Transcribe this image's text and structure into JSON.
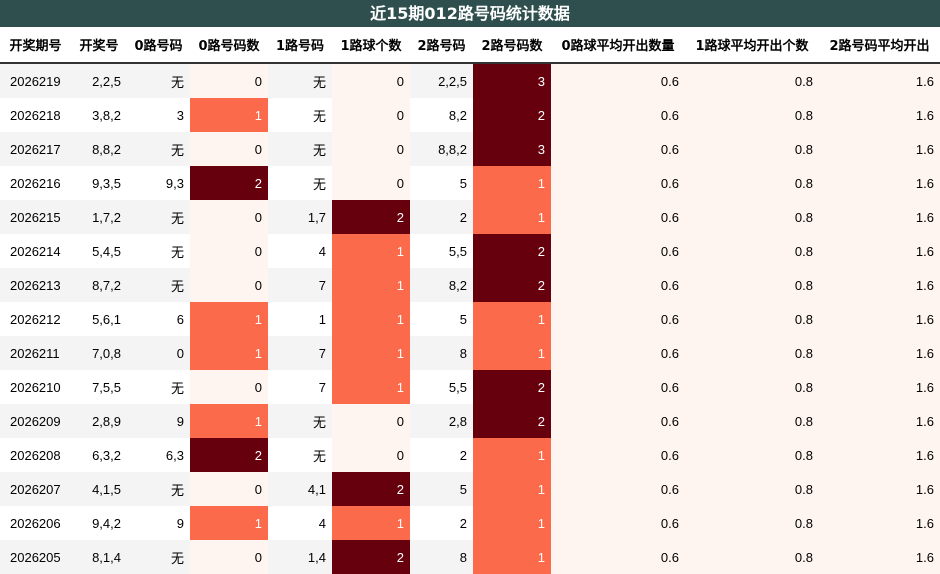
{
  "title": "近15期012路号码统计数据",
  "headers": [
    "开奖期号",
    "开奖号",
    "0路号码",
    "0路号码数",
    "1路号码",
    "1路球个数",
    "2路号码",
    "2路号码数",
    "0路球平均开出数量",
    "1路球平均开出个数",
    "2路号码平均开出"
  ],
  "rows": [
    {
      "period": "2026219",
      "draw": "2,2,5",
      "r0": "无",
      "c0": "0",
      "r1": "无",
      "c1": "0",
      "r2": "2,2,5",
      "c2": "3",
      "a0": "0.6",
      "a1": "0.8",
      "a2": "1.6"
    },
    {
      "period": "2026218",
      "draw": "3,8,2",
      "r0": "3",
      "c0": "1",
      "r1": "无",
      "c1": "0",
      "r2": "8,2",
      "c2": "2",
      "a0": "0.6",
      "a1": "0.8",
      "a2": "1.6"
    },
    {
      "period": "2026217",
      "draw": "8,8,2",
      "r0": "无",
      "c0": "0",
      "r1": "无",
      "c1": "0",
      "r2": "8,8,2",
      "c2": "3",
      "a0": "0.6",
      "a1": "0.8",
      "a2": "1.6"
    },
    {
      "period": "2026216",
      "draw": "9,3,5",
      "r0": "9,3",
      "c0": "2",
      "r1": "无",
      "c1": "0",
      "r2": "5",
      "c2": "1",
      "a0": "0.6",
      "a1": "0.8",
      "a2": "1.6"
    },
    {
      "period": "2026215",
      "draw": "1,7,2",
      "r0": "无",
      "c0": "0",
      "r1": "1,7",
      "c1": "2",
      "r2": "2",
      "c2": "1",
      "a0": "0.6",
      "a1": "0.8",
      "a2": "1.6"
    },
    {
      "period": "2026214",
      "draw": "5,4,5",
      "r0": "无",
      "c0": "0",
      "r1": "4",
      "c1": "1",
      "r2": "5,5",
      "c2": "2",
      "a0": "0.6",
      "a1": "0.8",
      "a2": "1.6"
    },
    {
      "period": "2026213",
      "draw": "8,7,2",
      "r0": "无",
      "c0": "0",
      "r1": "7",
      "c1": "1",
      "r2": "8,2",
      "c2": "2",
      "a0": "0.6",
      "a1": "0.8",
      "a2": "1.6"
    },
    {
      "period": "2026212",
      "draw": "5,6,1",
      "r0": "6",
      "c0": "1",
      "r1": "1",
      "c1": "1",
      "r2": "5",
      "c2": "1",
      "a0": "0.6",
      "a1": "0.8",
      "a2": "1.6"
    },
    {
      "period": "2026211",
      "draw": "7,0,8",
      "r0": "0",
      "c0": "1",
      "r1": "7",
      "c1": "1",
      "r2": "8",
      "c2": "1",
      "a0": "0.6",
      "a1": "0.8",
      "a2": "1.6"
    },
    {
      "period": "2026210",
      "draw": "7,5,5",
      "r0": "无",
      "c0": "0",
      "r1": "7",
      "c1": "1",
      "r2": "5,5",
      "c2": "2",
      "a0": "0.6",
      "a1": "0.8",
      "a2": "1.6"
    },
    {
      "period": "2026209",
      "draw": "2,8,9",
      "r0": "9",
      "c0": "1",
      "r1": "无",
      "c1": "0",
      "r2": "2,8",
      "c2": "2",
      "a0": "0.6",
      "a1": "0.8",
      "a2": "1.6"
    },
    {
      "period": "2026208",
      "draw": "6,3,2",
      "r0": "6,3",
      "c0": "2",
      "r1": "无",
      "c1": "0",
      "r2": "2",
      "c2": "1",
      "a0": "0.6",
      "a1": "0.8",
      "a2": "1.6"
    },
    {
      "period": "2026207",
      "draw": "4,1,5",
      "r0": "无",
      "c0": "0",
      "r1": "4,1",
      "c1": "2",
      "r2": "5",
      "c2": "1",
      "a0": "0.6",
      "a1": "0.8",
      "a2": "1.6"
    },
    {
      "period": "2026206",
      "draw": "9,4,2",
      "r0": "9",
      "c0": "1",
      "r1": "4",
      "c1": "1",
      "r2": "2",
      "c2": "1",
      "a0": "0.6",
      "a1": "0.8",
      "a2": "1.6"
    },
    {
      "period": "2026205",
      "draw": "8,1,4",
      "r0": "无",
      "c0": "0",
      "r1": "1,4",
      "c1": "2",
      "r2": "8",
      "c2": "1",
      "a0": "0.6",
      "a1": "0.8",
      "a2": "1.6"
    }
  ],
  "colors": {
    "title_bg": "#2f4f4f",
    "heat_low": "#fff5f0",
    "heat_mid": "#fb6a4a",
    "heat_high": "#67000d"
  }
}
